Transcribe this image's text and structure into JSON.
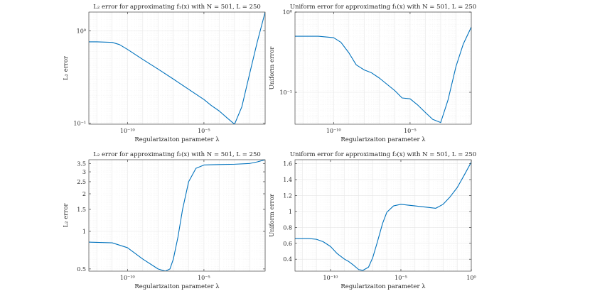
{
  "chart_data": [
    {
      "type": "line",
      "title": "L₂ error for approximating f₁(x) with N = 501,  L = 250",
      "xlabel": "Regularizaiton parameter λ",
      "ylabel": "L₂ error",
      "xscale": "log",
      "yscale": "log",
      "xlim": [
        3e-13,
        0.1
      ],
      "ylim": [
        0.097,
        1.6
      ],
      "grid": true,
      "xticks": [
        1e-10,
        1e-05
      ],
      "xtick_labels": [
        "10⁻¹⁰",
        "10⁻⁵"
      ],
      "yticks": [
        0.1,
        1
      ],
      "ytick_labels": [
        "10⁻¹",
        "10⁰"
      ],
      "series": [
        {
          "color": "#0072bd",
          "x": [
            3e-13,
            1e-12,
            1e-11,
            3e-11,
            1e-10,
            1e-09,
            1e-08,
            1e-07,
            1e-06,
            1e-05,
            3e-05,
            0.0001,
            0.0003,
            0.001,
            0.003,
            0.01,
            0.03,
            0.1
          ],
          "y": [
            0.76,
            0.76,
            0.75,
            0.71,
            0.63,
            0.49,
            0.385,
            0.3,
            0.232,
            0.18,
            0.155,
            0.135,
            0.115,
            0.097,
            0.15,
            0.35,
            0.75,
            1.6
          ]
        }
      ]
    },
    {
      "type": "line",
      "title": "Uniform error for approximating f₁(x) with N = 501,  L = 250",
      "xlabel": "Regularizaiton parameter λ",
      "ylabel": "Uniform error",
      "xscale": "log",
      "yscale": "log",
      "xlim": [
        3e-13,
        0.1
      ],
      "ylim": [
        0.04,
        1
      ],
      "grid": true,
      "xticks": [
        1e-10,
        1e-05
      ],
      "xtick_labels": [
        "10⁻¹⁰",
        "10⁻⁵"
      ],
      "yticks": [
        0.1,
        1
      ],
      "ytick_labels": [
        "10⁻¹",
        "10⁰"
      ],
      "series": [
        {
          "color": "#0072bd",
          "x": [
            3e-13,
            1e-11,
            1e-10,
            3e-10,
            1e-09,
            3e-09,
            1e-08,
            3e-08,
            1e-07,
            1e-06,
            3e-06,
            1e-05,
            3e-05,
            0.0001,
            0.0003,
            0.001,
            0.003,
            0.01,
            0.03,
            0.1
          ],
          "y": [
            0.5,
            0.5,
            0.48,
            0.42,
            0.31,
            0.22,
            0.19,
            0.175,
            0.15,
            0.105,
            0.085,
            0.083,
            0.07,
            0.056,
            0.046,
            0.042,
            0.08,
            0.21,
            0.4,
            0.65
          ]
        }
      ]
    },
    {
      "type": "line",
      "title": "L₂ error for approximating f₂(x) with N = 501,  L = 250",
      "xlabel": "Regularizaiton parameter λ",
      "ylabel": "L₂ error",
      "xscale": "log",
      "yscale": "log",
      "xlim": [
        3e-13,
        0.1
      ],
      "ylim": [
        0.48,
        3.75
      ],
      "grid": true,
      "xticks": [
        1e-10,
        1e-05
      ],
      "xtick_labels": [
        "10⁻¹⁰",
        "10⁻⁵"
      ],
      "yticks": [
        0.5,
        1,
        1.5,
        2,
        2.5,
        3,
        3.5
      ],
      "ytick_labels": [
        "0.5",
        "1",
        "1.5",
        "2",
        "2.5",
        "3",
        "3.5"
      ],
      "series": [
        {
          "color": "#0072bd",
          "x": [
            3e-13,
            1e-11,
            1e-10,
            1e-09,
            1e-08,
            3e-08,
            6e-08,
            1e-07,
            2e-07,
            4e-07,
            1e-06,
            3e-06,
            1e-05,
            3e-05,
            0.0001,
            0.001,
            0.01,
            0.03,
            0.1
          ],
          "y": [
            0.82,
            0.81,
            0.74,
            0.6,
            0.5,
            0.48,
            0.5,
            0.6,
            0.9,
            1.5,
            2.5,
            3.2,
            3.4,
            3.42,
            3.43,
            3.45,
            3.5,
            3.6,
            3.75
          ]
        }
      ]
    },
    {
      "type": "line",
      "title": "Uniform error for approximating f₂(x) with N = 501,  L = 250",
      "xlabel": "Regularizaiton parameter λ",
      "ylabel": "Uniform error",
      "xscale": "log",
      "yscale": "linear",
      "xlim": [
        3e-13,
        1
      ],
      "ylim": [
        0.25,
        1.65
      ],
      "grid": true,
      "xticks": [
        1e-10,
        1e-05,
        1
      ],
      "xtick_labels": [
        "10⁻¹⁰",
        "10⁻⁵",
        "10⁰"
      ],
      "yticks": [
        0.4,
        0.6,
        0.8,
        1,
        1.2,
        1.4,
        1.6
      ],
      "ytick_labels": [
        "0.4",
        "0.6",
        "0.8",
        "1",
        "1.2",
        "1.4",
        "1.6"
      ],
      "series": [
        {
          "color": "#0072bd",
          "x": [
            3e-13,
            3e-12,
            1e-11,
            3e-11,
            1e-10,
            3e-10,
            1e-09,
            2e-09,
            4e-09,
            1e-08,
            2e-08,
            5e-08,
            1e-07,
            2e-07,
            5e-07,
            1e-06,
            3e-06,
            1e-05,
            3e-05,
            0.0001,
            0.001,
            0.003,
            0.01,
            0.03,
            0.1,
            0.3,
            1
          ],
          "y": [
            0.66,
            0.66,
            0.65,
            0.62,
            0.56,
            0.47,
            0.4,
            0.37,
            0.33,
            0.27,
            0.26,
            0.3,
            0.42,
            0.6,
            0.85,
            0.99,
            1.07,
            1.09,
            1.08,
            1.07,
            1.05,
            1.04,
            1.09,
            1.18,
            1.3,
            1.45,
            1.62
          ]
        }
      ]
    }
  ]
}
